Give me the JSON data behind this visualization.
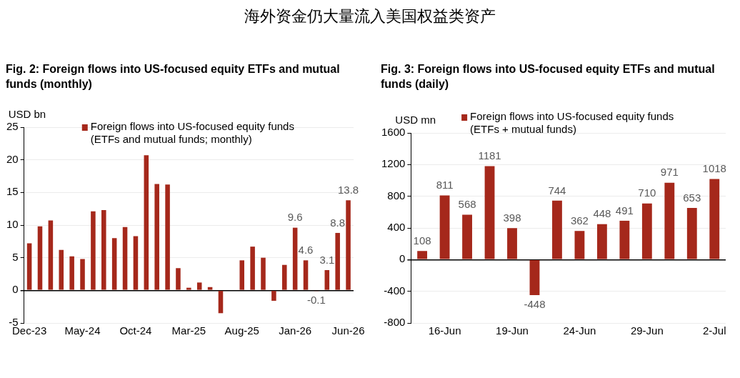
{
  "chart_data": [
    {
      "type": "other",
      "title": "海外资金仍大量流入美国权益类资产"
    },
    {
      "type": "bar",
      "title": "Fig. 2: Foreign flows into US-focused equity ETFs and mutual funds (monthly)",
      "ylabel": "USD bn",
      "categories": [
        "Dec-23",
        null,
        null,
        null,
        null,
        "May-24",
        null,
        null,
        null,
        null,
        "Oct-24",
        null,
        null,
        null,
        null,
        "Mar-25",
        null,
        null,
        null,
        null,
        "Aug-25",
        null,
        null,
        null,
        null,
        "Jan-26",
        null,
        null,
        null,
        null,
        "Jun-26"
      ],
      "series": [
        {
          "name": "Foreign flows into US-focused equity funds (ETFs and mutual funds; monthly)",
          "color": "#a5281b",
          "values": [
            7.2,
            9.8,
            10.7,
            6.2,
            5.2,
            4.8,
            12.1,
            12.3,
            8.0,
            9.7,
            8.3,
            20.7,
            16.3,
            16.2,
            3.4,
            0.4,
            1.2,
            0.5,
            -3.5,
            null,
            4.6,
            6.7,
            5.0,
            -1.6,
            3.9,
            9.6,
            4.6,
            -0.1,
            3.1,
            8.8,
            13.8
          ],
          "value_labels": [
            null,
            null,
            null,
            null,
            null,
            null,
            null,
            null,
            null,
            null,
            null,
            null,
            null,
            null,
            null,
            null,
            null,
            null,
            null,
            null,
            null,
            null,
            null,
            null,
            null,
            "9.6",
            "4.6",
            "-0.1",
            "3.1",
            "8.8",
            "13.8"
          ]
        }
      ],
      "ylim": [
        -5,
        25
      ],
      "yticks": [
        -5,
        0,
        5,
        10,
        15,
        20,
        25
      ],
      "grid": "y",
      "legend": "top"
    },
    {
      "type": "bar",
      "title": "Fig. 3: Foreign flows into US-focused equity ETFs and mutual funds (daily)",
      "ylabel": "USD mn",
      "categories": [
        null,
        "16-Jun",
        null,
        null,
        "19-Jun",
        null,
        null,
        "24-Jun",
        null,
        null,
        "29-Jun",
        null,
        null,
        "2-Jul"
      ],
      "series": [
        {
          "name": "Foreign flows into US-focused equity funds (ETFs + mutual funds)",
          "color": "#a5281b",
          "values": [
            108,
            811,
            568,
            1181,
            398,
            -448,
            744,
            362,
            448,
            491,
            710,
            971,
            653,
            1018
          ]
        }
      ],
      "ylim": [
        -800,
        1600
      ],
      "yticks": [
        -800,
        -400,
        0,
        400,
        800,
        1200,
        1600
      ],
      "grid": "y",
      "legend": "top",
      "data_labels": true
    }
  ]
}
